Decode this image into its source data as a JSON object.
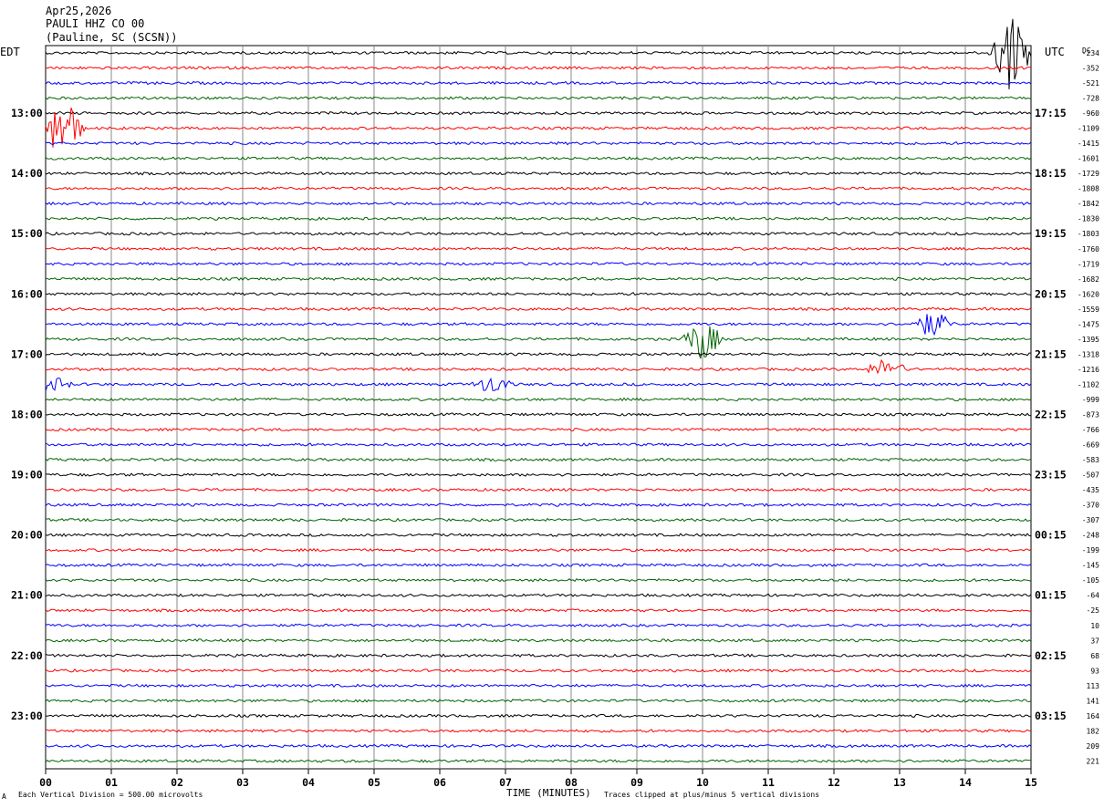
{
  "header": {
    "date": "Apr25,2026",
    "station": "PAULI HHZ CO 00",
    "location": "(Pauline, SC (SCSN))",
    "left_timezone": "EDT",
    "right_timezone": "UTC",
    "dc_label": "DC"
  },
  "footer": {
    "corner_mark": "A",
    "scale_note": "Each Vertical Division =  500.00 microvolts",
    "xlabel": "TIME (MINUTES)",
    "clip_note": "Traces clipped at plus/minus 5 vertical divisions"
  },
  "chart_data": {
    "type": "line",
    "title": "PAULI HHZ CO 00",
    "xlabel": "TIME (MINUTES)",
    "ylabel": "",
    "xlim": [
      0,
      15
    ],
    "x_ticks": [
      "00",
      "01",
      "02",
      "03",
      "04",
      "05",
      "06",
      "07",
      "08",
      "09",
      "10",
      "11",
      "12",
      "13",
      "14",
      "15"
    ],
    "grid": true,
    "trace_count": 48,
    "trace_colors": [
      "#000000",
      "#ff0000",
      "#0000ff",
      "#006400"
    ],
    "left_hour_labels": [
      "13:00",
      "14:00",
      "15:00",
      "16:00",
      "17:00",
      "18:00",
      "19:00",
      "20:00",
      "21:00",
      "22:00",
      "23:00"
    ],
    "right_hour_labels": [
      "17:15",
      "18:15",
      "19:15",
      "20:15",
      "21:15",
      "22:15",
      "23:15",
      "00:15",
      "01:15",
      "02:15",
      "03:15"
    ],
    "dc_offsets": [
      "-234",
      "-352",
      "-521",
      "-728",
      "-960",
      "-1109",
      "-1415",
      "-1601",
      "-1729",
      "-1808",
      "-1842",
      "-1830",
      "-1803",
      "-1760",
      "-1719",
      "-1682",
      "-1620",
      "-1559",
      "-1475",
      "-1395",
      "-1318",
      "-1216",
      "-1102",
      "-999",
      "-873",
      "-766",
      "-669",
      "-583",
      "-507",
      "-435",
      "-370",
      "-307",
      "-248",
      "-199",
      "-145",
      "-105",
      "-64",
      "-25",
      "10",
      "37",
      "68",
      "93",
      "113",
      "141",
      "164",
      "182",
      "209",
      "221"
    ],
    "events": [
      {
        "trace": 0,
        "minute": 14.7,
        "amplitude": 2.8
      },
      {
        "trace": 5,
        "minute": 0.25,
        "amplitude": 2.5
      },
      {
        "trace": 19,
        "minute": 10.0,
        "amplitude": 1.4
      },
      {
        "trace": 18,
        "minute": 13.5,
        "amplitude": 0.9
      },
      {
        "trace": 21,
        "minute": 12.8,
        "amplitude": 0.7
      },
      {
        "trace": 22,
        "minute": 6.8,
        "amplitude": 0.6
      },
      {
        "trace": 22,
        "minute": 0.1,
        "amplitude": 0.5
      }
    ]
  }
}
